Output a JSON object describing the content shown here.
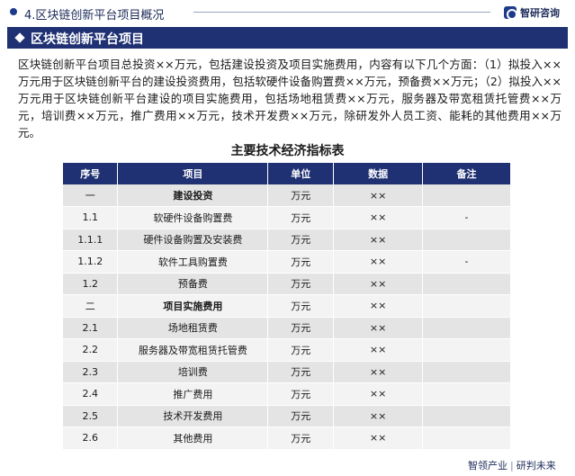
{
  "header": {
    "chapter": "4.区块链创新平台项目概况",
    "brand": "智研咨询"
  },
  "section": {
    "title": "区块链创新平台项目"
  },
  "intro": "区块链创新平台项目总投资××万元，包括建设投资及项目实施费用，内容有以下几个方面：（1）拟投入××万元用于区块链创新平台的建设投资费用，包括软硬件设备购置费××万元，预备费××万元；（2）拟投入××万元用于区块链创新平台建设的项目实施费用，包括场地租赁费××万元，服务器及带宽租赁托管费××万元，培训费××万元，推广费用××万元，技术开发费××万元，除研发外人员工资、能耗的其他费用××万元。",
  "table": {
    "title": "主要技术经济指标表",
    "headers": [
      "序号",
      "项目",
      "单位",
      "数据",
      "备注"
    ],
    "rows": [
      {
        "no": "一",
        "item": "建设投资",
        "unit": "万元",
        "value": "××",
        "note": "",
        "bold": true
      },
      {
        "no": "1.1",
        "item": "软硬件设备购置费",
        "unit": "万元",
        "value": "××",
        "note": "-",
        "bold": false
      },
      {
        "no": "1.1.1",
        "item": "硬件设备购置及安装费",
        "unit": "万元",
        "value": "××",
        "note": "",
        "bold": false
      },
      {
        "no": "1.1.2",
        "item": "软件工具购置费",
        "unit": "万元",
        "value": "××",
        "note": "-",
        "bold": false
      },
      {
        "no": "1.2",
        "item": "预备费",
        "unit": "万元",
        "value": "××",
        "note": "",
        "bold": false
      },
      {
        "no": "二",
        "item": "项目实施费用",
        "unit": "万元",
        "value": "××",
        "note": "",
        "bold": true
      },
      {
        "no": "2.1",
        "item": "场地租赁费",
        "unit": "万元",
        "value": "××",
        "note": "",
        "bold": false
      },
      {
        "no": "2.2",
        "item": "服务器及带宽租赁托管费",
        "unit": "万元",
        "value": "××",
        "note": "",
        "bold": false
      },
      {
        "no": "2.3",
        "item": "培训费",
        "unit": "万元",
        "value": "××",
        "note": "",
        "bold": false
      },
      {
        "no": "2.4",
        "item": "推广费用",
        "unit": "万元",
        "value": "××",
        "note": "",
        "bold": false
      },
      {
        "no": "2.5",
        "item": "技术开发费用",
        "unit": "万元",
        "value": "××",
        "note": "",
        "bold": false
      },
      {
        "no": "2.6",
        "item": "其他费用",
        "unit": "万元",
        "value": "××",
        "note": "",
        "bold": false
      }
    ]
  },
  "footer": {
    "left": "智领产业",
    "right": "研判未来"
  }
}
